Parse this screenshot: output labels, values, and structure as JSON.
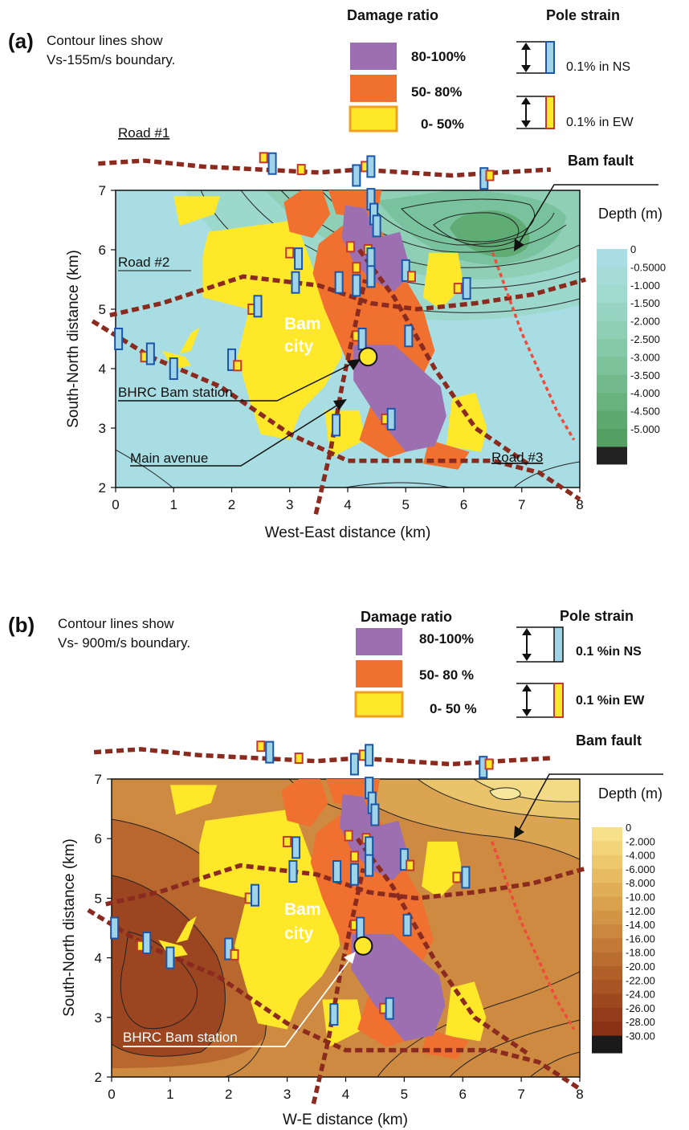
{
  "chart_data": [
    {
      "type": "heatmap",
      "panel_label": "(a)",
      "note": [
        "Contour lines show",
        "Vs-155m/s boundary."
      ],
      "xlabel": "West-East distance (km)",
      "ylabel": "South-North distance (km)",
      "xlim": [
        0,
        8
      ],
      "ylim": [
        2,
        7
      ],
      "xticks": [
        0,
        1,
        2,
        3,
        4,
        5,
        6,
        7,
        8
      ],
      "yticks": [
        2,
        3,
        4,
        5,
        6,
        7
      ],
      "colorbar_title": "Depth (m)",
      "colorbar_labels": [
        "0",
        "-0.5000",
        "-1.000",
        "-1.500",
        "-2.000",
        "-2.500",
        "-3.000",
        "-3.500",
        "-4.000",
        "-4.500",
        "-5.000"
      ],
      "colorbar_colors": [
        "#a8dde3",
        "#a5dcd8",
        "#a0d9cd",
        "#98d4c2",
        "#8fcfb5",
        "#86c9a8",
        "#7cc29a",
        "#72ba8c",
        "#68b27e",
        "#5ea970",
        "#54a062"
      ],
      "colorbar_bottom": "#222222",
      "legend_damage_title": "Damage ratio",
      "legend_damage": [
        {
          "label": "80-100%",
          "color": "#9b6fb0"
        },
        {
          "label": "50- 80%",
          "color": "#f07030"
        },
        {
          "label": "0- 50%",
          "color": "#ffe82a"
        }
      ],
      "legend_strain_title": "Pole strain",
      "legend_strain": [
        {
          "label": "0.1% in NS",
          "color": "#9fd4e8"
        },
        {
          "label": "0.1% in EW",
          "color": "#ffe82a"
        }
      ],
      "annotations": [
        "Road #1",
        "Road #2",
        "Road #3",
        "Bam fault",
        "BHRC Bam station",
        "Main avenue",
        "Bam",
        "city"
      ],
      "station": [
        4.35,
        4.2
      ],
      "roads": [
        {
          "name": "Road #1",
          "points": [
            [
              -0.3,
              7.45
            ],
            [
              0.5,
              7.5
            ],
            [
              1.5,
              7.4
            ],
            [
              2.5,
              7.35
            ],
            [
              3.5,
              7.3
            ],
            [
              4.2,
              7.35
            ],
            [
              5,
              7.3
            ],
            [
              5.8,
              7.25
            ],
            [
              6.6,
              7.3
            ],
            [
              7.5,
              7.35
            ]
          ]
        },
        {
          "name": "Road #2",
          "points": [
            [
              -0.1,
              4.9
            ],
            [
              0.8,
              5.1
            ],
            [
              2.2,
              5.55
            ],
            [
              3.5,
              5.4
            ],
            [
              4.4,
              5.1
            ],
            [
              5.2,
              5.0
            ],
            [
              6.2,
              5.1
            ],
            [
              7.2,
              5.25
            ],
            [
              8.1,
              5.5
            ]
          ]
        },
        {
          "name": "Road #3",
          "points": [
            [
              -0.4,
              4.8
            ],
            [
              0.6,
              4.2
            ],
            [
              1.8,
              3.7
            ],
            [
              3.0,
              2.9
            ],
            [
              4.0,
              2.45
            ],
            [
              5.5,
              2.45
            ],
            [
              6.5,
              2.45
            ],
            [
              7.3,
              2.25
            ],
            [
              8.0,
              1.8
            ]
          ]
        },
        {
          "name": "Main avenue",
          "points": [
            [
              3.45,
              1.55
            ],
            [
              3.7,
              2.6
            ],
            [
              3.9,
              3.7
            ],
            [
              4.1,
              4.6
            ],
            [
              4.3,
              5.5
            ]
          ]
        },
        {
          "name": "Diagonal road",
          "points": [
            [
              4.2,
              6.0
            ],
            [
              4.8,
              5.2
            ],
            [
              5.5,
              4.0
            ],
            [
              6.2,
              3.0
            ],
            [
              7.1,
              2.4
            ]
          ]
        }
      ],
      "fault": [
        [
          6.5,
          5.95
        ],
        [
          7.0,
          4.6
        ],
        [
          7.6,
          3.3
        ],
        [
          7.9,
          2.8
        ]
      ]
    },
    {
      "type": "heatmap",
      "panel_label": "(b)",
      "note": [
        "Contour lines show",
        "Vs- 900m/s boundary."
      ],
      "xlabel": "W-E distance (km)",
      "ylabel": "South-North distance (km)",
      "xlim": [
        0,
        8
      ],
      "ylim": [
        2,
        7
      ],
      "xticks": [
        0,
        1,
        2,
        3,
        4,
        5,
        6,
        7,
        8
      ],
      "yticks": [
        2,
        3,
        4,
        5,
        6,
        7
      ],
      "colorbar_title": "Depth (m)",
      "colorbar_labels": [
        "0",
        "-2.000",
        "-4.000",
        "-6.000",
        "-8.000",
        "-10.00",
        "-12.00",
        "-14.00",
        "-16.00",
        "-18.00",
        "-20.00",
        "-22.00",
        "-24.00",
        "-26.00",
        "-28.00",
        "-30.00"
      ],
      "colorbar_colors": [
        "#f6e08a",
        "#f2d47a",
        "#edc86d",
        "#e7bb62",
        "#e0ae57",
        "#d9a14e",
        "#d29445",
        "#ca873d",
        "#c27a36",
        "#ba6d30",
        "#b1602a",
        "#a85424",
        "#9e481f",
        "#943c1a",
        "#8a3116"
      ],
      "colorbar_bottom": "#1a1a1a",
      "legend_damage_title": "Damage ratio",
      "legend_damage": [
        {
          "label": "80-100%",
          "color": "#9b6fb0"
        },
        {
          "label": "50- 80 %",
          "color": "#f07030"
        },
        {
          "label": "0- 50 %",
          "color": "#ffe82a"
        }
      ],
      "legend_strain_title": "Pole strain",
      "legend_strain": [
        {
          "label": "0.1 %in NS",
          "color": "#9fd4e8"
        },
        {
          "label": "0.1 %in EW",
          "color": "#ffe82a"
        }
      ],
      "annotations": [
        "Bam fault",
        "BHRC Bam station",
        "Bam",
        "city"
      ],
      "station": [
        4.3,
        4.2
      ],
      "roads": [
        {
          "name": "Road #1",
          "points": [
            [
              -0.3,
              7.45
            ],
            [
              0.5,
              7.5
            ],
            [
              1.5,
              7.4
            ],
            [
              2.5,
              7.35
            ],
            [
              3.5,
              7.3
            ],
            [
              4.2,
              7.35
            ],
            [
              5,
              7.3
            ],
            [
              5.8,
              7.25
            ],
            [
              6.6,
              7.3
            ],
            [
              7.5,
              7.35
            ]
          ]
        },
        {
          "name": "Road #2",
          "points": [
            [
              -0.1,
              4.9
            ],
            [
              0.8,
              5.1
            ],
            [
              2.2,
              5.55
            ],
            [
              3.5,
              5.4
            ],
            [
              4.4,
              5.1
            ],
            [
              5.2,
              5.0
            ],
            [
              6.2,
              5.1
            ],
            [
              7.2,
              5.25
            ],
            [
              8.1,
              5.5
            ]
          ]
        },
        {
          "name": "Road #3",
          "points": [
            [
              -0.4,
              4.8
            ],
            [
              0.6,
              4.2
            ],
            [
              1.8,
              3.7
            ],
            [
              3.0,
              2.9
            ],
            [
              4.0,
              2.45
            ],
            [
              5.5,
              2.45
            ],
            [
              6.5,
              2.45
            ],
            [
              7.3,
              2.25
            ],
            [
              8.0,
              1.8
            ]
          ]
        },
        {
          "name": "Main avenue",
          "points": [
            [
              3.45,
              1.55
            ],
            [
              3.7,
              2.6
            ],
            [
              3.9,
              3.7
            ],
            [
              4.1,
              4.6
            ],
            [
              4.3,
              5.5
            ]
          ]
        },
        {
          "name": "Diagonal road",
          "points": [
            [
              4.2,
              6.0
            ],
            [
              4.8,
              5.2
            ],
            [
              5.5,
              4.0
            ],
            [
              6.2,
              3.0
            ],
            [
              7.1,
              2.4
            ]
          ]
        }
      ],
      "fault": [
        [
          6.5,
          5.95
        ],
        [
          7.0,
          4.6
        ],
        [
          7.6,
          3.3
        ],
        [
          7.9,
          2.8
        ]
      ]
    }
  ],
  "damage_polygons": [
    {
      "level": "0-50",
      "points": [
        [
          1.6,
          6.3
        ],
        [
          3.1,
          6.5
        ],
        [
          3.4,
          5.7
        ],
        [
          3.8,
          5.0
        ],
        [
          3.9,
          4.2
        ],
        [
          3.6,
          3.7
        ],
        [
          3.2,
          3.3
        ],
        [
          3.0,
          2.8
        ],
        [
          2.5,
          2.9
        ],
        [
          2.3,
          3.5
        ],
        [
          2.1,
          4.2
        ],
        [
          2.3,
          5.0
        ],
        [
          1.5,
          5.2
        ],
        [
          1.5,
          5.9
        ]
      ]
    },
    {
      "level": "0-50",
      "points": [
        [
          1.0,
          6.9
        ],
        [
          1.8,
          6.9
        ],
        [
          1.7,
          6.6
        ],
        [
          1.1,
          6.4
        ]
      ]
    },
    {
      "level": "0-50",
      "points": [
        [
          0.8,
          4.3
        ],
        [
          1.2,
          4.2
        ],
        [
          1.3,
          4.05
        ],
        [
          1.0,
          4.0
        ]
      ]
    },
    {
      "level": "0-50",
      "points": [
        [
          1.3,
          4.6
        ],
        [
          1.45,
          4.7
        ],
        [
          1.3,
          4.3
        ],
        [
          1.1,
          4.25
        ]
      ]
    },
    {
      "level": "0-50",
      "points": [
        [
          5.4,
          5.95
        ],
        [
          5.9,
          5.95
        ],
        [
          6.0,
          5.4
        ],
        [
          5.6,
          5.0
        ],
        [
          5.3,
          5.2
        ]
      ]
    },
    {
      "level": "0-50",
      "points": [
        [
          5.8,
          3.5
        ],
        [
          6.2,
          3.6
        ],
        [
          6.4,
          3.0
        ],
        [
          6.3,
          2.6
        ],
        [
          5.7,
          2.7
        ]
      ]
    },
    {
      "level": "0-50",
      "points": [
        [
          3.6,
          3.3
        ],
        [
          4.2,
          3.3
        ],
        [
          4.3,
          2.8
        ],
        [
          3.7,
          2.5
        ]
      ]
    },
    {
      "level": "50-80",
      "points": [
        [
          2.9,
          6.8
        ],
        [
          3.5,
          7.2
        ],
        [
          3.7,
          6.6
        ],
        [
          3.4,
          6.2
        ],
        [
          3.0,
          6.3
        ]
      ]
    },
    {
      "level": "50-80",
      "points": [
        [
          3.5,
          6.1
        ],
        [
          3.9,
          6.4
        ],
        [
          4.6,
          6.3
        ],
        [
          5.0,
          5.5
        ],
        [
          5.3,
          5.0
        ],
        [
          5.5,
          4.3
        ],
        [
          5.3,
          3.9
        ],
        [
          4.4,
          3.8
        ],
        [
          4.0,
          4.1
        ],
        [
          3.6,
          5.0
        ],
        [
          3.4,
          5.6
        ]
      ]
    },
    {
      "level": "50-80",
      "points": [
        [
          3.6,
          7.2
        ],
        [
          4.1,
          7.35
        ],
        [
          4.6,
          7.1
        ],
        [
          4.5,
          6.5
        ],
        [
          3.8,
          6.6
        ]
      ]
    },
    {
      "level": "50-80",
      "points": [
        [
          4.4,
          3.4
        ],
        [
          5.0,
          3.3
        ],
        [
          5.3,
          2.7
        ],
        [
          4.7,
          2.5
        ],
        [
          4.2,
          2.8
        ]
      ]
    },
    {
      "level": "50-80",
      "points": [
        [
          5.4,
          2.8
        ],
        [
          6.1,
          2.6
        ],
        [
          5.9,
          2.3
        ],
        [
          5.3,
          2.4
        ]
      ]
    },
    {
      "level": "80-100",
      "points": [
        [
          3.95,
          6.75
        ],
        [
          4.3,
          6.7
        ],
        [
          4.5,
          6.2
        ],
        [
          4.9,
          6.3
        ],
        [
          5.1,
          5.6
        ],
        [
          4.8,
          5.3
        ],
        [
          4.4,
          5.5
        ],
        [
          4.1,
          5.8
        ],
        [
          3.9,
          6.2
        ]
      ]
    },
    {
      "level": "80-100",
      "points": [
        [
          4.1,
          4.4
        ],
        [
          4.8,
          4.4
        ],
        [
          5.6,
          3.7
        ],
        [
          5.7,
          3.2
        ],
        [
          5.5,
          2.7
        ],
        [
          5.0,
          2.6
        ],
        [
          4.5,
          3.2
        ],
        [
          4.1,
          3.8
        ]
      ]
    }
  ],
  "strain_markers": [
    {
      "x": 2.55,
      "y": 7.55,
      "dir": "EW"
    },
    {
      "x": 2.7,
      "y": 7.45,
      "dir": "NS"
    },
    {
      "x": 3.2,
      "y": 7.35,
      "dir": "EW"
    },
    {
      "x": 4.15,
      "y": 7.25,
      "dir": "NS"
    },
    {
      "x": 4.3,
      "y": 7.4,
      "dir": "EW"
    },
    {
      "x": 4.4,
      "y": 7.4,
      "dir": "NS"
    },
    {
      "x": 4.4,
      "y": 6.85,
      "dir": "NS"
    },
    {
      "x": 4.45,
      "y": 6.6,
      "dir": "NS"
    },
    {
      "x": 4.5,
      "y": 6.4,
      "dir": "NS"
    },
    {
      "x": 4.35,
      "y": 6.0,
      "dir": "EW"
    },
    {
      "x": 4.4,
      "y": 5.85,
      "dir": "NS"
    },
    {
      "x": 4.4,
      "y": 5.55,
      "dir": "NS"
    },
    {
      "x": 4.05,
      "y": 6.05,
      "dir": "EW"
    },
    {
      "x": 4.15,
      "y": 5.7,
      "dir": "EW"
    },
    {
      "x": 3.85,
      "y": 5.45,
      "dir": "NS"
    },
    {
      "x": 4.15,
      "y": 5.4,
      "dir": "NS"
    },
    {
      "x": 4.15,
      "y": 4.55,
      "dir": "EW"
    },
    {
      "x": 4.25,
      "y": 4.5,
      "dir": "NS"
    },
    {
      "x": 3.1,
      "y": 5.45,
      "dir": "NS"
    },
    {
      "x": 3.0,
      "y": 5.95,
      "dir": "EW"
    },
    {
      "x": 3.15,
      "y": 5.85,
      "dir": "NS"
    },
    {
      "x": 2.35,
      "y": 5.0,
      "dir": "EW"
    },
    {
      "x": 2.45,
      "y": 5.05,
      "dir": "NS"
    },
    {
      "x": 0.05,
      "y": 4.5,
      "dir": "NS"
    },
    {
      "x": 0.5,
      "y": 4.2,
      "dir": "EW"
    },
    {
      "x": 0.6,
      "y": 4.25,
      "dir": "NS"
    },
    {
      "x": 1.0,
      "y": 4.0,
      "dir": "NS"
    },
    {
      "x": 2.0,
      "y": 4.15,
      "dir": "NS"
    },
    {
      "x": 2.1,
      "y": 4.05,
      "dir": "EW"
    },
    {
      "x": 3.8,
      "y": 3.05,
      "dir": "NS"
    },
    {
      "x": 4.65,
      "y": 3.15,
      "dir": "EW"
    },
    {
      "x": 4.75,
      "y": 3.15,
      "dir": "NS"
    },
    {
      "x": 5.05,
      "y": 4.55,
      "dir": "NS"
    },
    {
      "x": 5.0,
      "y": 5.65,
      "dir": "NS"
    },
    {
      "x": 5.1,
      "y": 5.55,
      "dir": "EW"
    },
    {
      "x": 5.9,
      "y": 5.35,
      "dir": "EW"
    },
    {
      "x": 6.05,
      "y": 5.35,
      "dir": "NS"
    },
    {
      "x": 6.35,
      "y": 7.2,
      "dir": "NS"
    },
    {
      "x": 6.45,
      "y": 7.25,
      "dir": "EW"
    }
  ]
}
